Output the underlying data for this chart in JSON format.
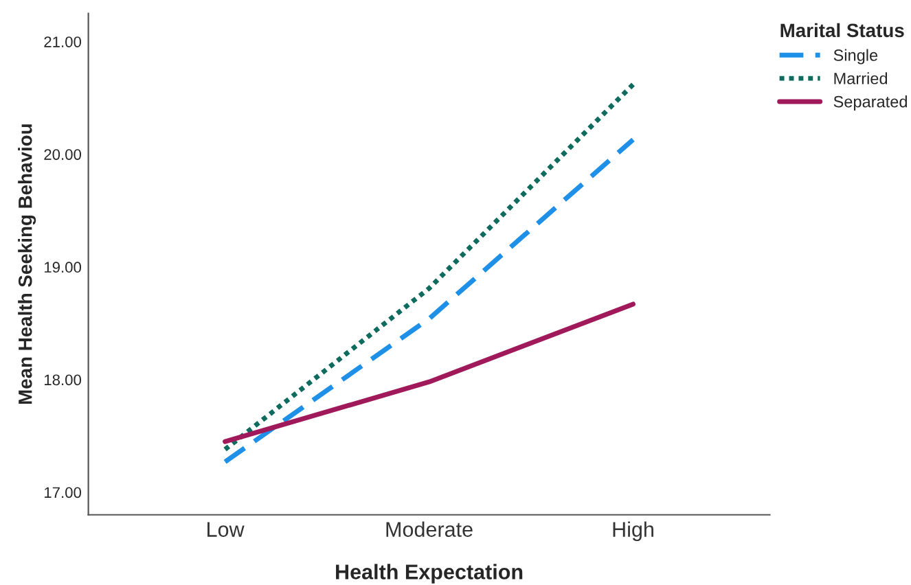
{
  "chart_data": {
    "type": "line",
    "xlabel": "Health Expectation",
    "ylabel": "Mean Health Seeking Behaviou",
    "legend_title": "Marital Status",
    "legend": "top right",
    "grid": false,
    "categories": [
      "Low",
      "Moderate",
      "High"
    ],
    "ylim": [
      16.8,
      21.25
    ],
    "yticks": [
      {
        "value": 17,
        "label": "17.00"
      },
      {
        "value": 18,
        "label": "18.00"
      },
      {
        "value": 19,
        "label": "19.00"
      },
      {
        "value": 20,
        "label": "20.00"
      },
      {
        "value": 21,
        "label": "21.00"
      }
    ],
    "series": [
      {
        "name": "Single",
        "color": "#1e90e8",
        "line_style": "dashed",
        "values": [
          17.27,
          18.54,
          20.13
        ]
      },
      {
        "name": "Married",
        "color": "#0f6b5e",
        "line_style": "dotted",
        "values": [
          17.38,
          18.81,
          20.62
        ]
      },
      {
        "name": "Separated",
        "color": "#a0195a",
        "line_style": "solid",
        "values": [
          17.45,
          17.98,
          18.67
        ]
      }
    ]
  }
}
